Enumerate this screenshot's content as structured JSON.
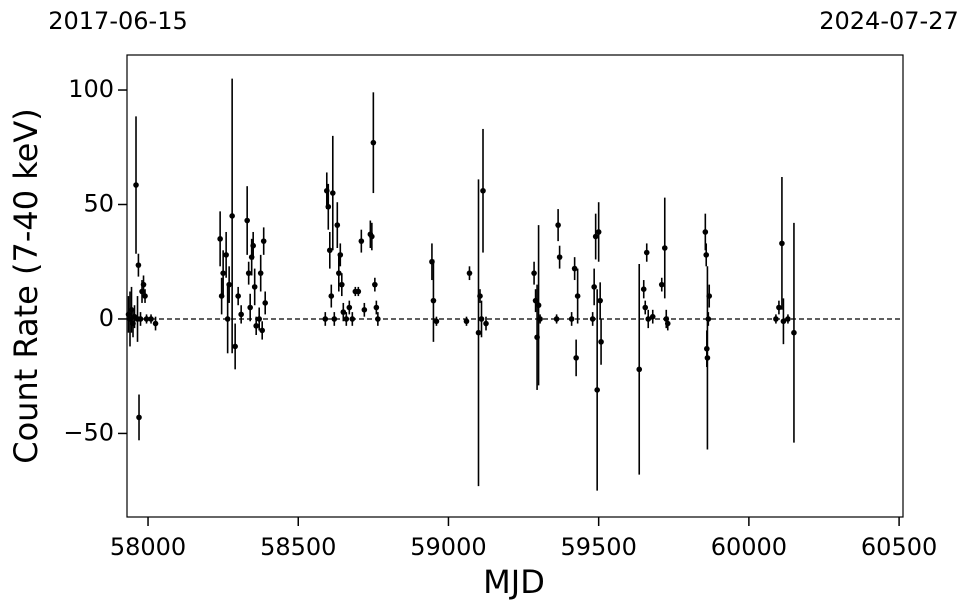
{
  "chart_data": {
    "type": "errorbar",
    "xlabel": "MJD",
    "ylabel": "Count Rate (7-40 keV)",
    "start_label": "2017-06-15",
    "end_label": "2024-07-27",
    "color": "#000000",
    "hline": 0,
    "xlim": [
      57930,
      60513
    ],
    "ylim": [
      -86.5,
      115.3
    ],
    "xticks": [
      58000,
      58500,
      59000,
      59500,
      60000,
      60500
    ],
    "yticks": [
      {
        "value": -50,
        "label": "−50"
      },
      0,
      50,
      100
    ],
    "x": [
      57935,
      57940,
      57945,
      57950,
      57955,
      57960,
      57965,
      57968,
      57970,
      57975,
      57980,
      57985,
      57990,
      57995,
      58010,
      58025,
      58240,
      58245,
      58250,
      58260,
      58265,
      58270,
      58280,
      58290,
      58300,
      58310,
      58330,
      58335,
      58340,
      58345,
      58350,
      58355,
      58360,
      58370,
      58375,
      58380,
      58385,
      58390,
      58590,
      58595,
      58600,
      58605,
      58610,
      58615,
      58620,
      58630,
      58635,
      58640,
      58645,
      58650,
      58660,
      58670,
      58680,
      58690,
      58700,
      58710,
      58720,
      58740,
      58745,
      58750,
      58755,
      58760,
      58765,
      58945,
      58950,
      58960,
      59060,
      59070,
      59100,
      59105,
      59110,
      59115,
      59125,
      59285,
      59290,
      59295,
      59300,
      59305,
      59360,
      59365,
      59370,
      59410,
      59420,
      59425,
      59430,
      59480,
      59485,
      59490,
      59495,
      59500,
      59505,
      59508,
      59635,
      59650,
      59655,
      59660,
      59665,
      59680,
      59710,
      59720,
      59725,
      59730,
      59855,
      59858,
      59860,
      59862,
      59865,
      59868,
      60090,
      60100,
      60110,
      60115,
      60130,
      60150
    ],
    "values": [
      2,
      0,
      4,
      -2,
      1,
      58.5,
      0,
      23.5,
      -43,
      0,
      12,
      15,
      10,
      0,
      0,
      -2,
      35,
      10,
      20,
      28,
      0,
      15,
      45,
      -12,
      10,
      2,
      43,
      20,
      5,
      27,
      32,
      14,
      -3,
      0,
      20,
      -5,
      34,
      7,
      0,
      56,
      49,
      30,
      10,
      55,
      0,
      41,
      20,
      28,
      15,
      3,
      0,
      5,
      0,
      12,
      12,
      34,
      4,
      37,
      36,
      77,
      15,
      5,
      0,
      25,
      8,
      -1,
      -1,
      20,
      -6,
      10,
      0,
      56,
      -2,
      20,
      8,
      -8,
      6,
      0,
      0,
      41,
      27,
      0,
      22,
      -17,
      10,
      0,
      14,
      36,
      -31,
      38,
      8,
      -10,
      -22,
      13,
      5,
      29,
      0,
      1,
      15,
      31,
      0,
      -2,
      38,
      28,
      -13,
      -17,
      0,
      10,
      0,
      5,
      33,
      -1,
      0,
      -6
    ],
    "errors": [
      8,
      12,
      10,
      6,
      5,
      30,
      10,
      5,
      10,
      3,
      5,
      4,
      3,
      2,
      2,
      3,
      12,
      8,
      10,
      10,
      15,
      8,
      60,
      10,
      4,
      4,
      15,
      5,
      6,
      8,
      6,
      8,
      4,
      5,
      8,
      4,
      6,
      5,
      3,
      8,
      10,
      8,
      5,
      25,
      3,
      10,
      8,
      5,
      5,
      4,
      3,
      3,
      3,
      2,
      2,
      5,
      3,
      6,
      6,
      22,
      3,
      3,
      3,
      8,
      18,
      2,
      2,
      3,
      67,
      3,
      8,
      27,
      3,
      5,
      5,
      23,
      35,
      2,
      2,
      7,
      5,
      3,
      5,
      8,
      12,
      3,
      8,
      10,
      44,
      13,
      8,
      10,
      46,
      4,
      3,
      4,
      4,
      3,
      3,
      22,
      4,
      3,
      8,
      5,
      8,
      40,
      3,
      5,
      2,
      3,
      29,
      10,
      2,
      48
    ]
  }
}
